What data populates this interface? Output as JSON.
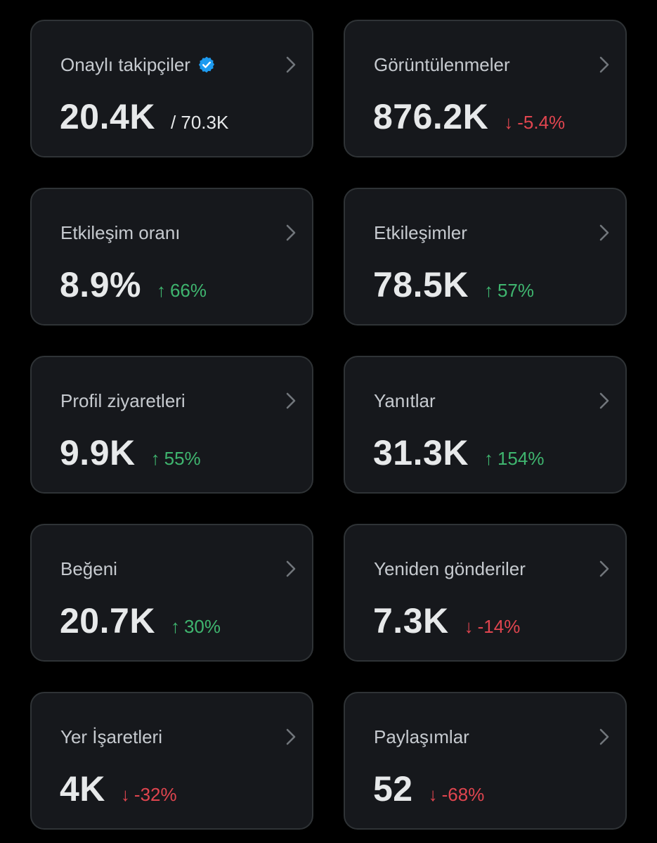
{
  "colors": {
    "background": "#000000",
    "card_background": "#16181c",
    "card_border": "#2f3336",
    "label": "#c6cacf",
    "value": "#e7e9ea",
    "positive": "#3fb56f",
    "negative": "#e0454f",
    "verified": "#1d9bf0"
  },
  "cards": [
    {
      "title": "Onaylı takipçiler",
      "value": "20.4K",
      "secondary": "/ 70.3K",
      "icon": "verified-badge-icon"
    },
    {
      "title": "Görüntülenmeler",
      "value": "876.2K",
      "change": {
        "direction": "down",
        "arrow": "↓",
        "text": "-5.4%"
      }
    },
    {
      "title": "Etkileşim oranı",
      "value": "8.9%",
      "change": {
        "direction": "up",
        "arrow": "↑",
        "text": "66%"
      }
    },
    {
      "title": "Etkileşimler",
      "value": "78.5K",
      "change": {
        "direction": "up",
        "arrow": "↑",
        "text": "57%"
      }
    },
    {
      "title": "Profil ziyaretleri",
      "value": "9.9K",
      "change": {
        "direction": "up",
        "arrow": "↑",
        "text": "55%"
      }
    },
    {
      "title": "Yanıtlar",
      "value": "31.3K",
      "change": {
        "direction": "up",
        "arrow": "↑",
        "text": "154%"
      }
    },
    {
      "title": "Beğeni",
      "value": "20.7K",
      "change": {
        "direction": "up",
        "arrow": "↑",
        "text": "30%"
      }
    },
    {
      "title": "Yeniden gönderiler",
      "value": "7.3K",
      "change": {
        "direction": "down",
        "arrow": "↓",
        "text": "-14%"
      }
    },
    {
      "title": "Yer İşaretleri",
      "value": "4K",
      "change": {
        "direction": "down",
        "arrow": "↓",
        "text": "-32%"
      }
    },
    {
      "title": "Paylaşımlar",
      "value": "52",
      "change": {
        "direction": "down",
        "arrow": "↓",
        "text": "-68%"
      }
    }
  ]
}
